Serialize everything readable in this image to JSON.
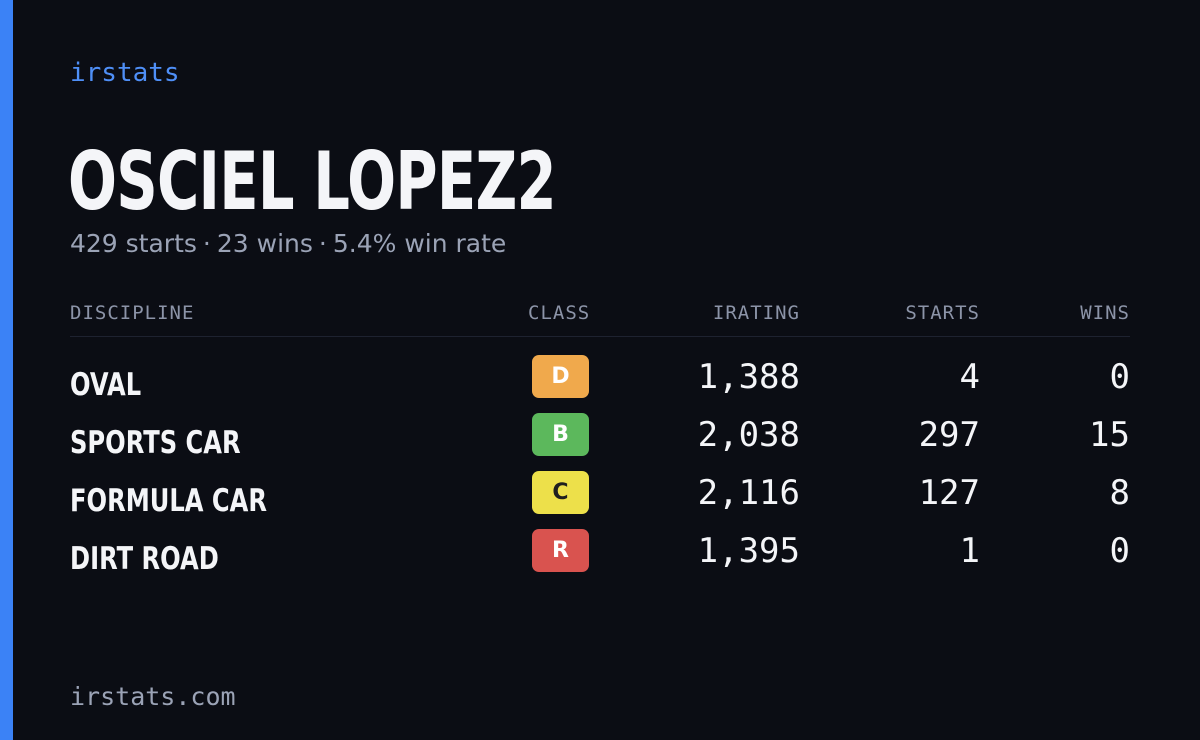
{
  "colors": {
    "background": "#0b0d14",
    "accent": "#3b82f6",
    "brand": "#4f8ff7",
    "text_primary": "#f4f5f8",
    "text_muted": "#9ba3b6"
  },
  "brand": {
    "label": "irstats"
  },
  "player": {
    "name": "OSCIEL LOPEZ2"
  },
  "summary": {
    "starts": "429 starts",
    "wins": "23 wins",
    "win_rate": "5.4% win rate",
    "separator": "·"
  },
  "table": {
    "headers": {
      "discipline": "DISCIPLINE",
      "class": "CLASS",
      "irating": "IRATING",
      "starts": "STARTS",
      "wins": "WINS"
    },
    "rows": [
      {
        "discipline": "OVAL",
        "class": "D",
        "class_color": "#f0a94c",
        "class_text_color": "#ffffff",
        "irating": "1,388",
        "starts": "4",
        "wins": "0"
      },
      {
        "discipline": "SPORTS CAR",
        "class": "B",
        "class_color": "#5cb85c",
        "class_text_color": "#ffffff",
        "irating": "2,038",
        "starts": "297",
        "wins": "15"
      },
      {
        "discipline": "FORMULA CAR",
        "class": "C",
        "class_color": "#ede04a",
        "class_text_color": "#1f1f1f",
        "irating": "2,116",
        "starts": "127",
        "wins": "8"
      },
      {
        "discipline": "DIRT ROAD",
        "class": "R",
        "class_color": "#d9534f",
        "class_text_color": "#ffffff",
        "irating": "1,395",
        "starts": "1",
        "wins": "0"
      }
    ]
  },
  "footer": {
    "url": "irstats.com"
  }
}
